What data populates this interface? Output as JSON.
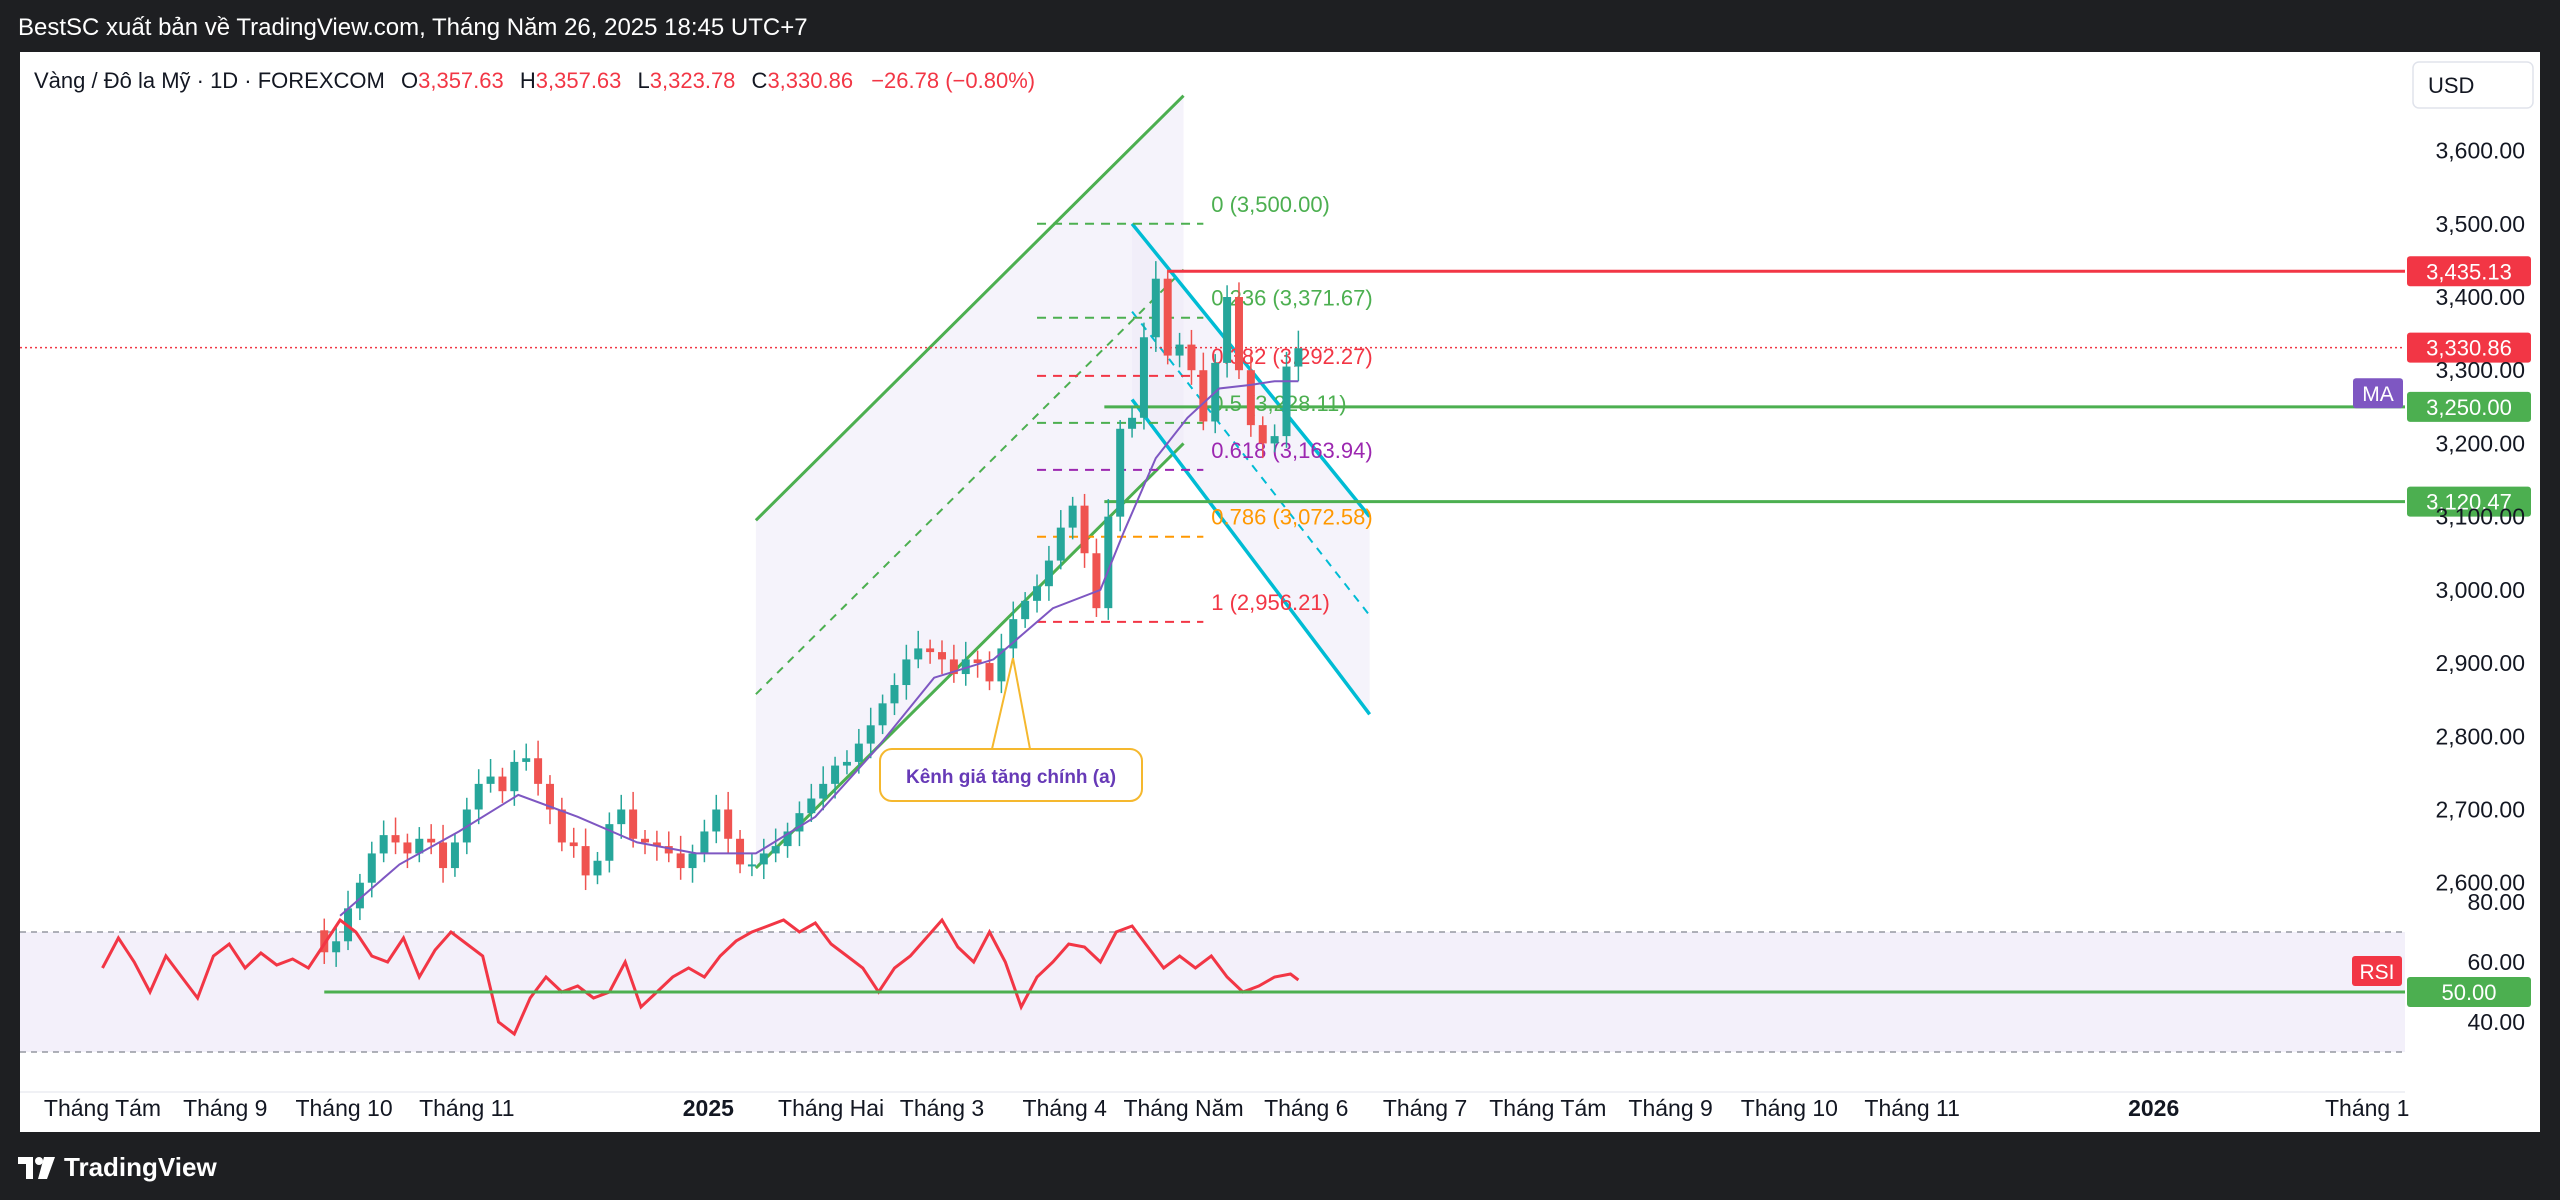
{
  "header": {
    "published_by": "BestSC xuất bản về TradingView.com, Tháng Năm 26, 2025 18:45 UTC+7"
  },
  "footer": {
    "brand": "TradingView"
  },
  "legend": {
    "symbol": "Vàng / Đô la Mỹ · 1D · FOREXCOM",
    "o_label": "O",
    "o": "3,357.63",
    "h_label": "H",
    "h": "3,357.63",
    "l_label": "L",
    "l": "3,323.78",
    "c_label": "C",
    "c": "3,330.86",
    "change": "−26.78 (−0.80%)"
  },
  "currency": "USD",
  "colors": {
    "up": "#26a69a",
    "down": "#ef5350",
    "ma": "#7e57c2",
    "channel": "#4caf50",
    "down_channel": "#00bcd4",
    "resistance": "#f23645",
    "support": "#4caf50",
    "rsi": "#f23645"
  },
  "chart_data": {
    "type": "line",
    "ylim": [
      2560,
      3680
    ],
    "y_ticks": [
      "3,600.00",
      "3,500.00",
      "3,400.00",
      "3,300.00",
      "3,200.00",
      "3,100.00",
      "3,000.00",
      "2,900.00",
      "2,800.00",
      "2,700.00",
      "2,600.00"
    ],
    "y_tick_values": [
      3600,
      3500,
      3400,
      3300,
      3200,
      3100,
      3000,
      2900,
      2800,
      2700,
      2600
    ],
    "x_labels": [
      "Tháng Tám",
      "Tháng 9",
      "Tháng 10",
      "Tháng 11",
      "2025",
      "Tháng Hai",
      "Tháng 3",
      "Tháng 4",
      "Tháng Năm",
      "Tháng 6",
      "Tháng 7",
      "Tháng Tám",
      "Tháng 9",
      "Tháng 10",
      "Tháng 11",
      "2026",
      "Tháng 1"
    ],
    "x_label_day": [
      0,
      31,
      61,
      92,
      153,
      184,
      212,
      243,
      273,
      304,
      334,
      365,
      396,
      426,
      457,
      518,
      549
    ],
    "x_label_bold": [
      false,
      false,
      false,
      false,
      true,
      false,
      false,
      false,
      false,
      false,
      false,
      false,
      false,
      false,
      false,
      true,
      false
    ],
    "price_series": [
      [
        53,
        2535
      ],
      [
        56,
        2505
      ],
      [
        59,
        2520
      ],
      [
        62,
        2565
      ],
      [
        65,
        2600
      ],
      [
        68,
        2640
      ],
      [
        71,
        2665
      ],
      [
        74,
        2655
      ],
      [
        77,
        2640
      ],
      [
        80,
        2660
      ],
      [
        83,
        2655
      ],
      [
        86,
        2620
      ],
      [
        89,
        2655
      ],
      [
        92,
        2700
      ],
      [
        95,
        2735
      ],
      [
        98,
        2745
      ],
      [
        101,
        2725
      ],
      [
        104,
        2765
      ],
      [
        107,
        2770
      ],
      [
        110,
        2735
      ],
      [
        113,
        2700
      ],
      [
        116,
        2655
      ],
      [
        119,
        2650
      ],
      [
        122,
        2610
      ],
      [
        125,
        2630
      ],
      [
        128,
        2680
      ],
      [
        131,
        2700
      ],
      [
        134,
        2660
      ],
      [
        137,
        2655
      ],
      [
        140,
        2650
      ],
      [
        143,
        2640
      ],
      [
        146,
        2620
      ],
      [
        149,
        2640
      ],
      [
        152,
        2670
      ],
      [
        155,
        2700
      ],
      [
        158,
        2660
      ],
      [
        161,
        2625
      ],
      [
        164,
        2625
      ],
      [
        167,
        2640
      ],
      [
        170,
        2650
      ],
      [
        173,
        2670
      ],
      [
        176,
        2695
      ],
      [
        179,
        2715
      ],
      [
        182,
        2735
      ],
      [
        185,
        2760
      ],
      [
        188,
        2765
      ],
      [
        191,
        2790
      ],
      [
        194,
        2815
      ],
      [
        197,
        2845
      ],
      [
        200,
        2870
      ],
      [
        203,
        2905
      ],
      [
        206,
        2920
      ],
      [
        209,
        2915
      ],
      [
        212,
        2905
      ],
      [
        215,
        2885
      ],
      [
        218,
        2905
      ],
      [
        221,
        2900
      ],
      [
        224,
        2875
      ],
      [
        227,
        2920
      ],
      [
        230,
        2960
      ],
      [
        233,
        2985
      ],
      [
        236,
        3005
      ],
      [
        239,
        3040
      ],
      [
        242,
        3085
      ],
      [
        245,
        3115
      ],
      [
        248,
        3050
      ],
      [
        251,
        2975
      ],
      [
        254,
        3100
      ],
      [
        257,
        3220
      ],
      [
        260,
        3235
      ],
      [
        263,
        3345
      ],
      [
        266,
        3425
      ],
      [
        269,
        3320
      ],
      [
        272,
        3335
      ],
      [
        275,
        3300
      ],
      [
        278,
        3230
      ],
      [
        281,
        3310
      ],
      [
        284,
        3400
      ],
      [
        287,
        3300
      ],
      [
        290,
        3225
      ],
      [
        293,
        3200
      ],
      [
        296,
        3210
      ],
      [
        299,
        3305
      ],
      [
        302,
        3330
      ]
    ],
    "ma_series": [
      [
        60,
        2555
      ],
      [
        75,
        2625
      ],
      [
        90,
        2670
      ],
      [
        105,
        2720
      ],
      [
        120,
        2690
      ],
      [
        135,
        2655
      ],
      [
        150,
        2640
      ],
      [
        165,
        2640
      ],
      [
        180,
        2690
      ],
      [
        195,
        2780
      ],
      [
        210,
        2880
      ],
      [
        225,
        2905
      ],
      [
        240,
        2975
      ],
      [
        252,
        3000
      ],
      [
        258,
        3080
      ],
      [
        266,
        3180
      ],
      [
        274,
        3235
      ],
      [
        282,
        3275
      ],
      [
        290,
        3280
      ],
      [
        296,
        3285
      ],
      [
        302,
        3285
      ]
    ],
    "rsi": {
      "ylim": [
        30,
        80
      ],
      "y_ticks": [
        "80.00",
        "60.00",
        "40.00"
      ],
      "y_tick_values": [
        80,
        60,
        40
      ],
      "band": [
        30,
        70
      ],
      "series": [
        [
          0,
          58
        ],
        [
          4,
          68
        ],
        [
          8,
          60
        ],
        [
          12,
          50
        ],
        [
          16,
          62
        ],
        [
          20,
          55
        ],
        [
          24,
          48
        ],
        [
          28,
          62
        ],
        [
          32,
          66
        ],
        [
          36,
          58
        ],
        [
          40,
          63
        ],
        [
          44,
          59
        ],
        [
          48,
          61
        ],
        [
          52,
          58
        ],
        [
          56,
          66
        ],
        [
          60,
          74
        ],
        [
          64,
          70
        ],
        [
          68,
          62
        ],
        [
          72,
          60
        ],
        [
          76,
          68
        ],
        [
          80,
          55
        ],
        [
          84,
          64
        ],
        [
          88,
          70
        ],
        [
          92,
          66
        ],
        [
          96,
          62
        ],
        [
          100,
          40
        ],
        [
          104,
          36
        ],
        [
          108,
          48
        ],
        [
          112,
          55
        ],
        [
          116,
          50
        ],
        [
          120,
          52
        ],
        [
          124,
          48
        ],
        [
          128,
          50
        ],
        [
          132,
          60
        ],
        [
          136,
          45
        ],
        [
          140,
          50
        ],
        [
          144,
          55
        ],
        [
          148,
          58
        ],
        [
          152,
          55
        ],
        [
          156,
          62
        ],
        [
          160,
          67
        ],
        [
          164,
          70
        ],
        [
          168,
          72
        ],
        [
          172,
          74
        ],
        [
          176,
          70
        ],
        [
          180,
          73
        ],
        [
          184,
          66
        ],
        [
          188,
          62
        ],
        [
          192,
          58
        ],
        [
          196,
          50
        ],
        [
          200,
          58
        ],
        [
          204,
          62
        ],
        [
          208,
          68
        ],
        [
          212,
          74
        ],
        [
          216,
          65
        ],
        [
          220,
          60
        ],
        [
          224,
          70
        ],
        [
          228,
          60
        ],
        [
          232,
          45
        ],
        [
          236,
          55
        ],
        [
          240,
          60
        ],
        [
          244,
          66
        ],
        [
          248,
          65
        ],
        [
          252,
          60
        ],
        [
          256,
          70
        ],
        [
          260,
          72
        ],
        [
          264,
          65
        ],
        [
          268,
          58
        ],
        [
          272,
          62
        ],
        [
          276,
          58
        ],
        [
          280,
          62
        ],
        [
          284,
          55
        ],
        [
          288,
          50
        ],
        [
          292,
          52
        ],
        [
          296,
          55
        ],
        [
          300,
          56
        ],
        [
          302,
          54
        ]
      ]
    }
  },
  "fibonacci": {
    "levels": [
      {
        "label": "0 (3,500.00)",
        "value": 3500,
        "color": "#4caf50"
      },
      {
        "label": "0.236 (3,371.67)",
        "value": 3371.67,
        "color": "#4caf50"
      },
      {
        "label": "0.382 (3,292.27)",
        "value": 3292.27,
        "color": "#f23645"
      },
      {
        "label": "0.5 (3,228.11)",
        "value": 3228.11,
        "color": "#4caf50"
      },
      {
        "label": "0.618 (3,163.94)",
        "value": 3163.94,
        "color": "#9c27b0"
      },
      {
        "label": "0.786 (3,072.58)",
        "value": 3072.58,
        "color": "#ff9800"
      },
      {
        "label": "1 (2,956.21)",
        "value": 2956.21,
        "color": "#f23645"
      }
    ]
  },
  "horizontal_levels": [
    {
      "label": "3,435.13",
      "value": 3435.13,
      "color": "#f23645"
    },
    {
      "label": "3,250.00",
      "value": 3250,
      "color": "#4caf50"
    },
    {
      "label": "3,120.47",
      "value": 3120.47,
      "color": "#4caf50"
    }
  ],
  "badges": {
    "price": "3,330.86",
    "price_value": 3330.86,
    "ma": "MA",
    "ma_value": 3285,
    "rsi": "RSI",
    "rsi_value": 57,
    "rsi_level": "50.00",
    "rsi_level_value": 50
  },
  "annotation": {
    "text": "Kênh giá tăng chính (a)"
  },
  "channels": {
    "up_channel": {
      "lower": [
        [
          165,
          2620
        ],
        [
          273,
          3200
        ]
      ],
      "upper": [
        [
          165,
          3095
        ],
        [
          273,
          3675
        ]
      ]
    },
    "down_channel": {
      "upper": [
        [
          260,
          3500
        ],
        [
          320,
          3100
        ]
      ],
      "lower": [
        [
          260,
          3260
        ],
        [
          320,
          2830
        ]
      ]
    }
  }
}
